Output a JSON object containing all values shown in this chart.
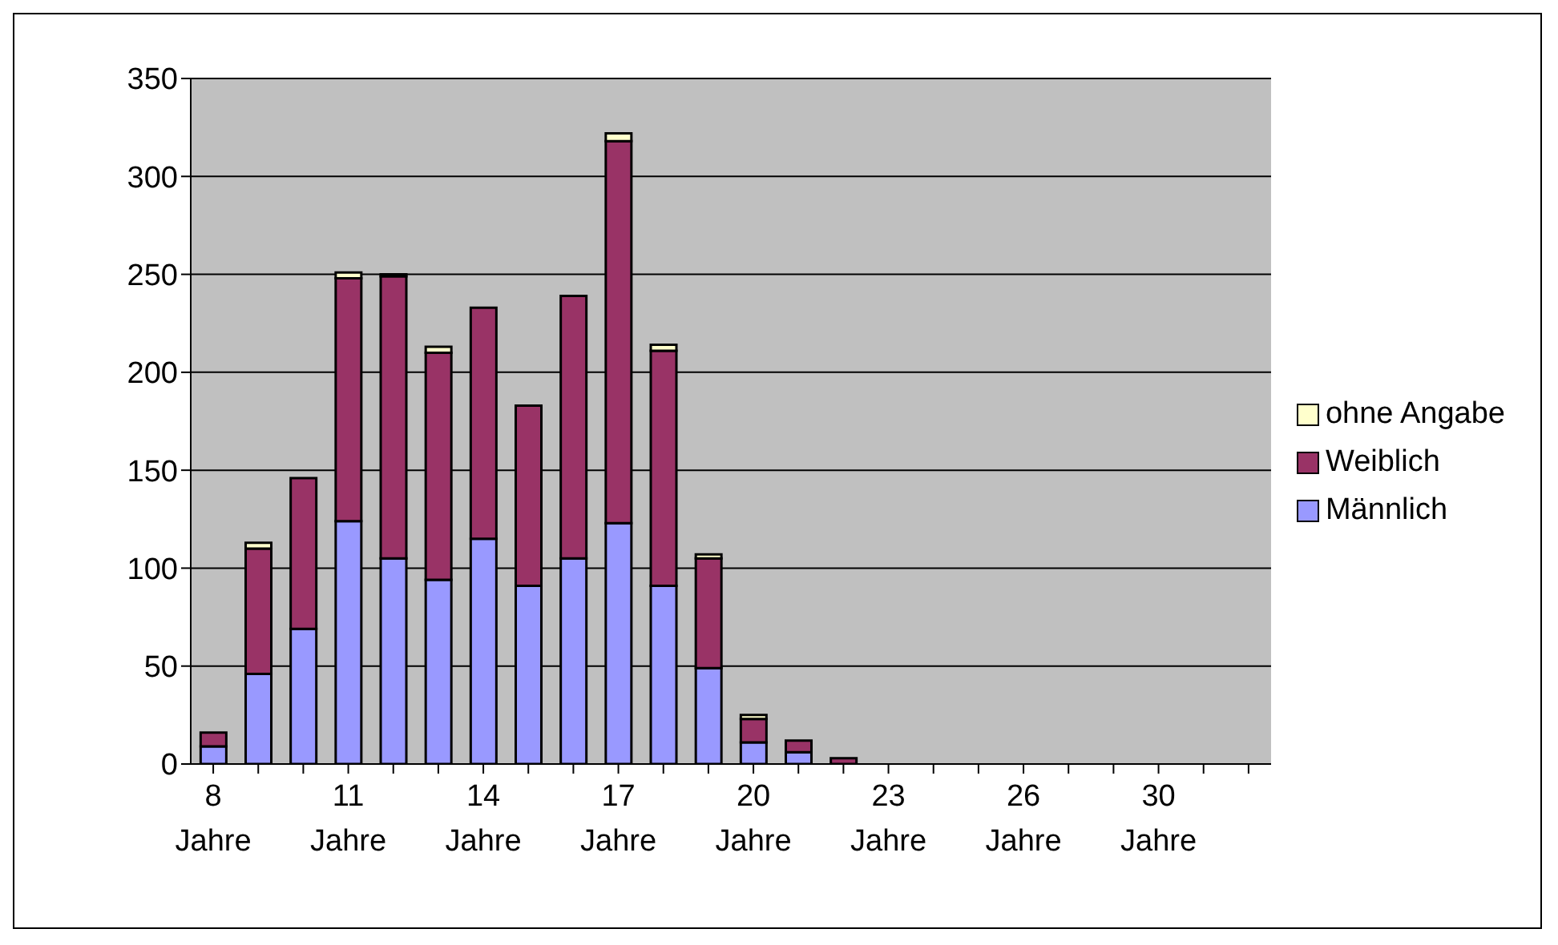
{
  "chart_data": {
    "type": "bar",
    "stacked": true,
    "categories": [
      "8 Jahre",
      null,
      null,
      "11 Jahre",
      null,
      null,
      "14 Jahre",
      null,
      null,
      "17 Jahre",
      null,
      null,
      "20 Jahre",
      null,
      null,
      "23 Jahre",
      null,
      null,
      "26 Jahre",
      null,
      null,
      "30 Jahre",
      null,
      null
    ],
    "series": [
      {
        "name": "Männlich",
        "color": "#9999ff",
        "values": [
          9,
          46,
          69,
          124,
          105,
          94,
          115,
          91,
          105,
          123,
          91,
          49,
          11,
          6,
          0,
          0,
          0,
          0,
          0,
          0,
          0,
          0,
          0,
          0
        ]
      },
      {
        "name": "Weiblich",
        "color": "#993366",
        "values": [
          7,
          64,
          77,
          124,
          144,
          116,
          118,
          92,
          134,
          195,
          120,
          56,
          12,
          6,
          3,
          0,
          0,
          0,
          0,
          0,
          0,
          0,
          0,
          0
        ]
      },
      {
        "name": "ohne Angabe",
        "color": "#ffffcc",
        "values": [
          0,
          3,
          0,
          3,
          1,
          3,
          0,
          0,
          0,
          4,
          3,
          2,
          2,
          0,
          0,
          0,
          0,
          0,
          0,
          0,
          0,
          0,
          0,
          0
        ]
      }
    ],
    "ylim": [
      0,
      350
    ],
    "yticks": [
      0,
      50,
      100,
      150,
      200,
      250,
      300,
      350
    ],
    "grid": "y",
    "legend": "right"
  }
}
